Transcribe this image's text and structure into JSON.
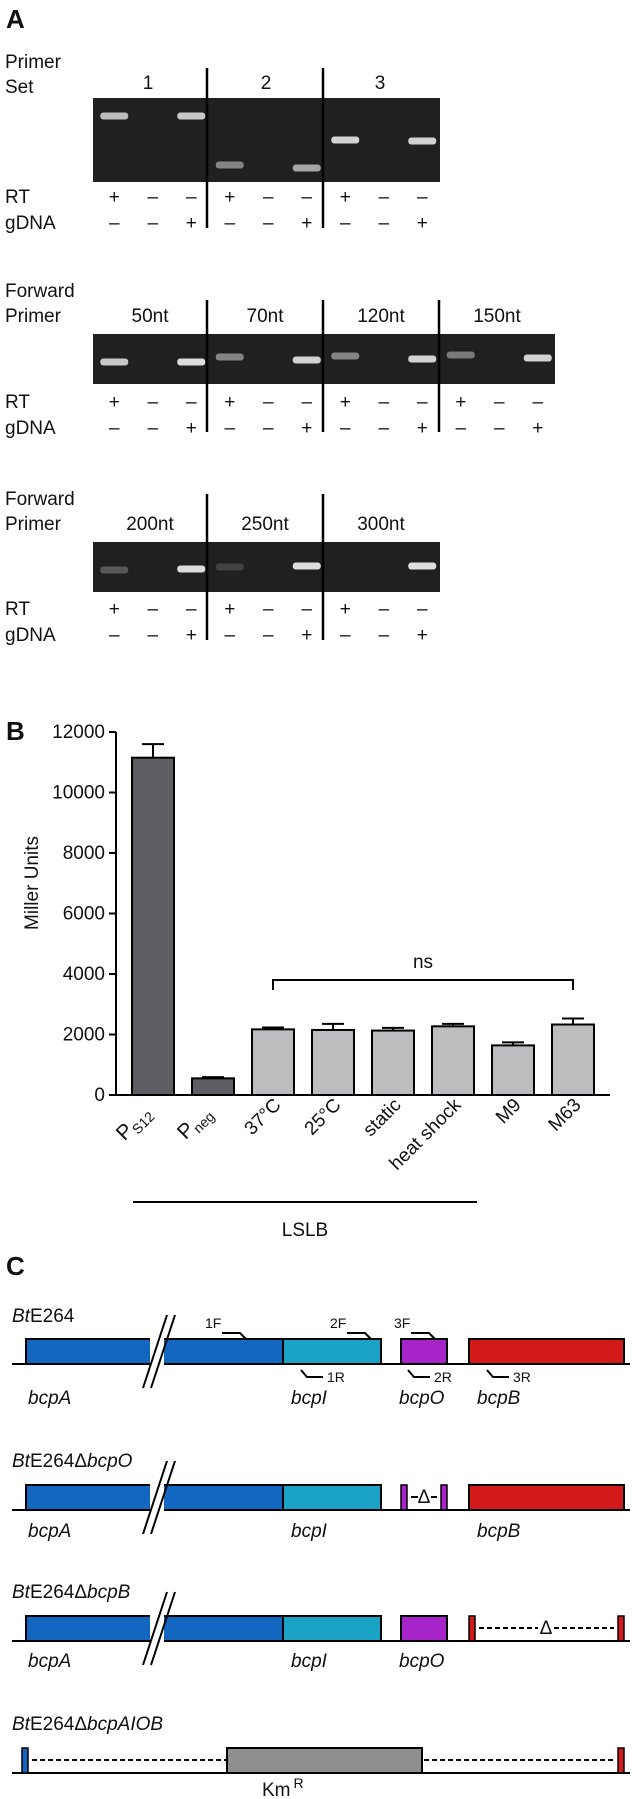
{
  "panel_a": {
    "label": "A",
    "gels": [
      {
        "header": [
          "Primer",
          "Set"
        ],
        "lanes": [
          "1",
          "2",
          "3"
        ],
        "rt": [
          "+",
          "–",
          "–",
          "+",
          "–",
          "–",
          "+",
          "–",
          "–"
        ],
        "gdna": [
          "–",
          "–",
          "+",
          "–",
          "–",
          "+",
          "–",
          "–",
          "+"
        ],
        "bands": [
          0.7,
          0,
          0.75,
          0.45,
          0,
          0.6,
          0.8,
          0,
          0.8
        ]
      },
      {
        "header": [
          "Forward",
          "Primer"
        ],
        "lanes": [
          "50nt",
          "70nt",
          "120nt",
          "150nt"
        ],
        "rt": [
          "+",
          "–",
          "–",
          "+",
          "–",
          "–",
          "+",
          "–",
          "–",
          "+",
          "–",
          "–"
        ],
        "gdna": [
          "–",
          "–",
          "+",
          "–",
          "–",
          "+",
          "–",
          "–",
          "+",
          "–",
          "–",
          "+"
        ],
        "bands": [
          0.75,
          0,
          0.85,
          0.45,
          0,
          0.8,
          0.45,
          0,
          0.8,
          0.4,
          0,
          0.8
        ]
      },
      {
        "header": [
          "Forward",
          "Primer"
        ],
        "lanes": [
          "200nt",
          "250nt",
          "300nt"
        ],
        "rt": [
          "+",
          "–",
          "–",
          "+",
          "–",
          "–",
          "+",
          "–",
          "–"
        ],
        "gdna": [
          "–",
          "–",
          "+",
          "–",
          "–",
          "+",
          "–",
          "–",
          "+"
        ],
        "bands": [
          0.25,
          0,
          0.85,
          0.15,
          0,
          0.85,
          0,
          0,
          0.85
        ]
      }
    ],
    "row_labels": {
      "rt": "RT",
      "gdna": "gDNA"
    }
  },
  "panel_b": {
    "label": "B",
    "chart_data": {
      "type": "bar",
      "ylabel": "Miller Units",
      "ylim": [
        0,
        12000
      ],
      "yticks": [
        "0",
        "2000",
        "4000",
        "6000",
        "8000",
        "10000",
        "12000"
      ],
      "categories": [
        "PS12",
        "Pneg",
        "37°C",
        "25°C",
        "static",
        "heat shock",
        "M9",
        "M63"
      ],
      "values": [
        11150,
        550,
        2170,
        2150,
        2130,
        2270,
        1640,
        2330
      ],
      "errors": [
        450,
        40,
        60,
        200,
        90,
        80,
        100,
        200
      ],
      "colors": [
        "#5d5f64",
        "#5d5f64",
        "#bcbdbf",
        "#bcbdbf",
        "#bcbdbf",
        "#bcbdbf",
        "#bcbdbf",
        "#bcbdbf"
      ],
      "significance": "ns",
      "group_label": "LSLB",
      "grid": false
    },
    "tick_parts": {
      "ps12_main": "P",
      "ps12_sub": "S12",
      "pneg_main": "P",
      "pneg_sub": "neg"
    }
  },
  "panel_c": {
    "label": "C",
    "strains": [
      {
        "prefix": "Bt",
        "rest": "E264",
        "suffix": ""
      },
      {
        "prefix": "Bt",
        "rest": "E264Δ",
        "suffix": "bcpO"
      },
      {
        "prefix": "Bt",
        "rest": "E264Δ",
        "suffix": "bcpB"
      },
      {
        "prefix": "Bt",
        "rest": "E264Δ",
        "suffix": "bcpAIOB"
      }
    ],
    "genes": {
      "bcpA": "bcpA",
      "bcpI": "bcpI",
      "bcpO": "bcpO",
      "bcpB": "bcpB"
    },
    "primers": {
      "f1": "1F",
      "f2": "2F",
      "f3": "3F",
      "r1": "1R",
      "r2": "2R",
      "r3": "3R"
    },
    "delta": "Δ",
    "kmr_main": "Km",
    "kmr_sup": "R",
    "colors": {
      "bcpA": "#1467c0",
      "bcpI": "#1aa3c4",
      "bcpO": "#a724c8",
      "bcpB": "#d21a1a",
      "kmr": "#8e8e8e"
    }
  }
}
